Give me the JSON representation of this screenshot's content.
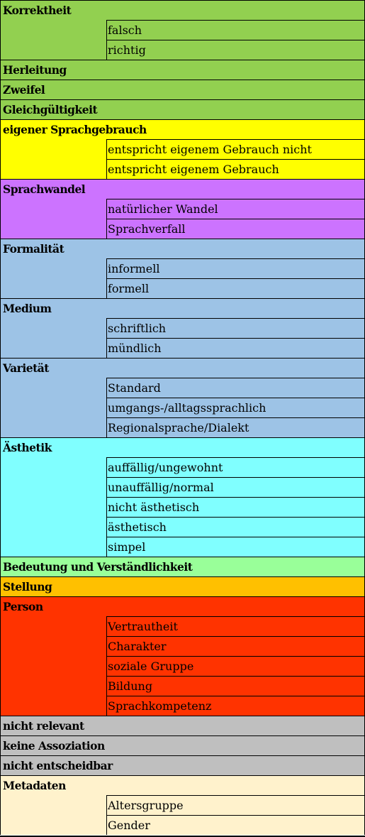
{
  "colors": {
    "green": "#92d050",
    "yellow": "#ffff00",
    "purple": "#cc73ff",
    "lightblue": "#9dc3e6",
    "cyan": "#80ffff",
    "lightgreen": "#99ff99",
    "orange": "#ffc000",
    "red": "#ff3300",
    "gray": "#bfbfbf",
    "cream": "#fff2cc"
  },
  "groups": [
    {
      "label": "Korrektheit",
      "color": "green",
      "subs": [
        "falsch",
        "richtig"
      ]
    },
    {
      "label": "Herleitung",
      "color": "green",
      "subs": []
    },
    {
      "label": "Zweifel",
      "color": "green",
      "subs": []
    },
    {
      "label": "Gleichgültigkeit",
      "color": "green",
      "subs": []
    },
    {
      "label": "eigener Sprachgebrauch",
      "color": "yellow",
      "subs": [
        "entspricht eigenem Gebrauch nicht",
        "entspricht eigenem Gebrauch"
      ]
    },
    {
      "label": "Sprachwandel",
      "color": "purple",
      "subs": [
        "natürlicher Wandel",
        "Sprachverfall"
      ]
    },
    {
      "label": "Formalität",
      "color": "lightblue",
      "subs": [
        "informell",
        "formell"
      ]
    },
    {
      "label": "Medium",
      "color": "lightblue",
      "subs": [
        "schriftlich",
        "mündlich"
      ]
    },
    {
      "label": "Varietät",
      "color": "lightblue",
      "subs": [
        "Standard",
        "umgangs-/alltagssprachlich",
        "Regionalsprache/Dialekt"
      ]
    },
    {
      "label": "Ästhetik",
      "color": "cyan",
      "subs": [
        "auffällig/ungewohnt",
        "unauffällig/normal",
        "nicht ästhetisch",
        "ästhetisch",
        "simpel"
      ]
    },
    {
      "label": "Bedeutung und Verständlichkeit",
      "color": "lightgreen",
      "subs": []
    },
    {
      "label": "Stellung",
      "color": "orange",
      "subs": []
    },
    {
      "label": "Person",
      "color": "red",
      "subs": [
        "Vertrautheit",
        "Charakter",
        "soziale Gruppe",
        "Bildung",
        "Sprachkompetenz"
      ]
    },
    {
      "label": "nicht relevant",
      "color": "gray",
      "subs": []
    },
    {
      "label": "keine Assoziation",
      "color": "gray",
      "subs": []
    },
    {
      "label": "nicht entscheidbar",
      "color": "gray",
      "subs": []
    },
    {
      "label": "Metadaten",
      "color": "cream",
      "subs": [
        "Altersgruppe",
        "Gender"
      ]
    }
  ]
}
